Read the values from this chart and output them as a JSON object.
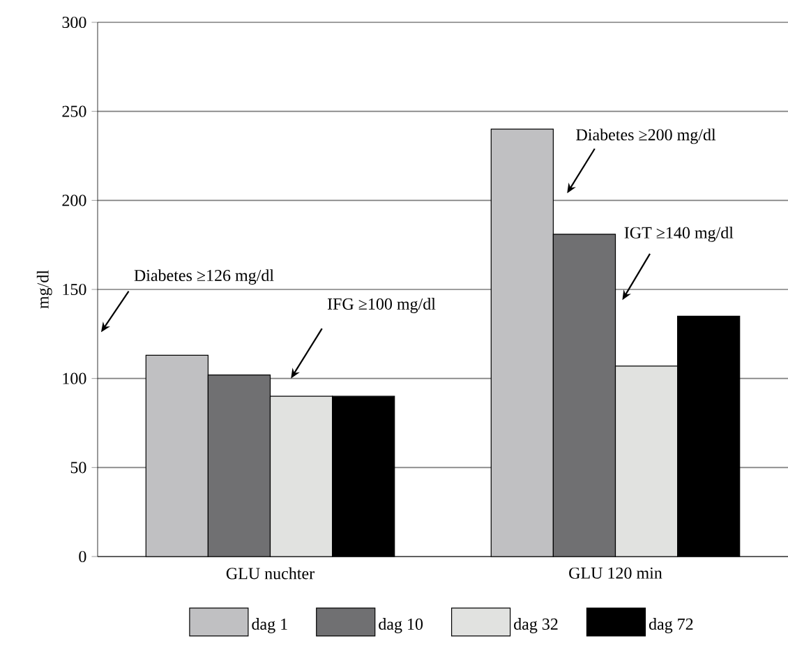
{
  "chart_data": {
    "type": "bar",
    "ylabel": "mg/dl",
    "categories": [
      "GLU nuchter",
      "GLU 120 min"
    ],
    "series": [
      {
        "name": "dag 1",
        "color": "#c0c0c2",
        "values": [
          113,
          240
        ]
      },
      {
        "name": "dag 10",
        "color": "#707072",
        "values": [
          102,
          181
        ]
      },
      {
        "name": "dag 32",
        "color": "#e1e2e0",
        "values": [
          90,
          107
        ]
      },
      {
        "name": "dag 72",
        "color": "#000000",
        "values": [
          90,
          135
        ]
      }
    ],
    "ylim": [
      0,
      300
    ],
    "yticks": [
      0,
      50,
      100,
      150,
      200,
      250,
      300
    ],
    "grid": "y",
    "legend": "bottom",
    "annotations": [
      "Diabetes ≥126 mg/dl",
      "IFG ≥100 mg/dl",
      "Diabetes ≥200 mg/dl",
      "IGT ≥140 mg/dl"
    ]
  }
}
